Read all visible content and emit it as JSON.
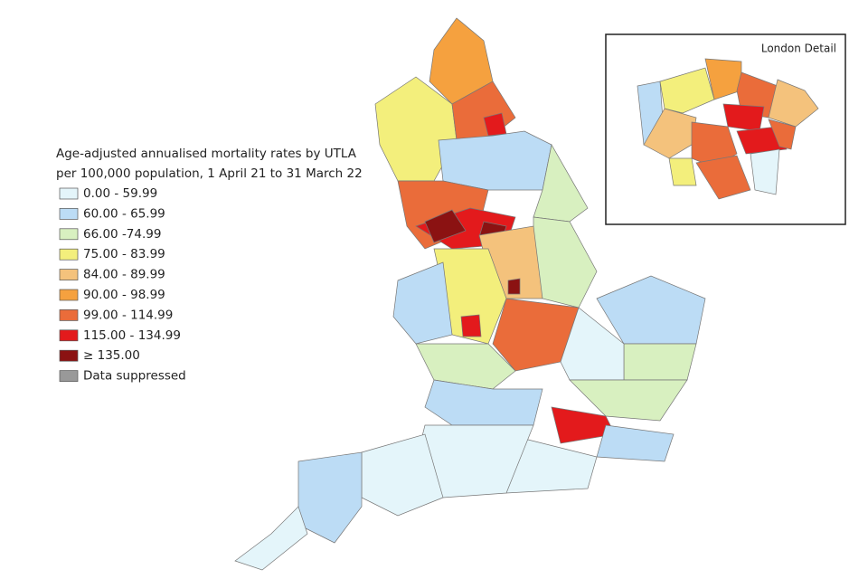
{
  "legend": {
    "title": [
      "Age-adjusted annualised mortality rates by UTLA",
      "per 100,000 population, 1 April 21 to 31 March 22"
    ],
    "items": [
      {
        "label": "0.00 - 59.99",
        "color": "#e4f5fa"
      },
      {
        "label": "60.00 - 65.99",
        "color": "#bcdcf5"
      },
      {
        "label": "66.00 -74.99",
        "color": "#d8f0c0"
      },
      {
        "label": "75.00 - 83.99",
        "color": "#f3ef7c"
      },
      {
        "label": "84.00 - 89.99",
        "color": "#f4c27c"
      },
      {
        "label": "90.00 - 98.99",
        "color": "#f5a13f"
      },
      {
        "label": "99.00 - 114.99",
        "color": "#ea6c3a"
      },
      {
        "label": "115.00 - 134.99",
        "color": "#e31a1c"
      },
      {
        "label": "≥ 135.00",
        "color": "#8b1212"
      },
      {
        "label": "Data suppressed",
        "color": "#999999"
      }
    ]
  },
  "inset": {
    "title": "London Detail"
  }
}
